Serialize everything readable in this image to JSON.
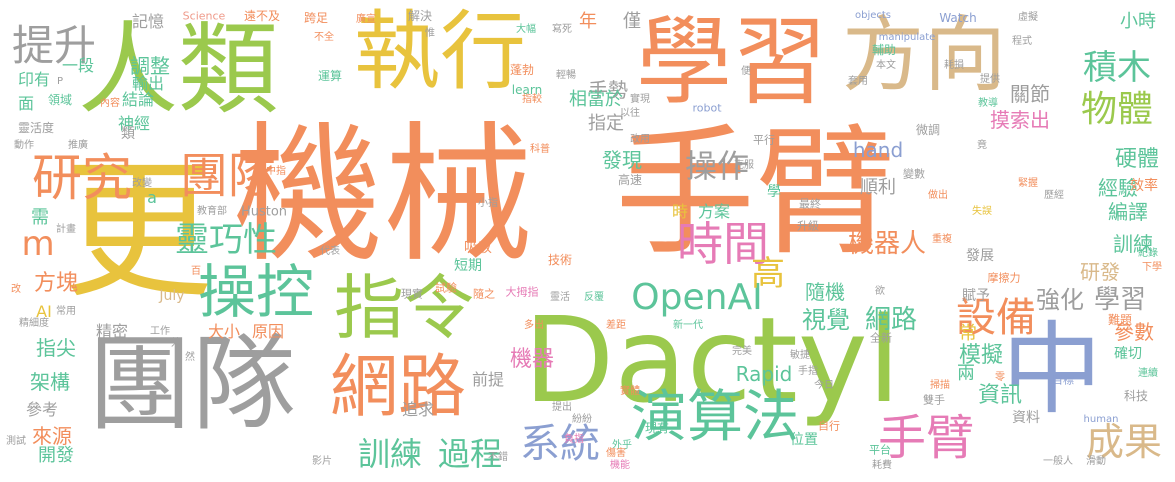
{
  "palette": {
    "orange": "#f28e5c",
    "green": "#9bc94d",
    "yellow": "#e8c33d",
    "gray": "#9e9e9e",
    "teal": "#5cc49a",
    "tan": "#d9b98a",
    "blue": "#8b9fd1",
    "pink": "#e67bb6",
    "salmon": "#ef9a8a",
    "lightgreen": "#a9d68a"
  },
  "words": [
    {
      "text": "機械",
      "color": "orange"
    },
    {
      "text": "手臂",
      "color": "orange"
    },
    {
      "text": "Dactyl",
      "color": "green"
    },
    {
      "text": "更",
      "color": "yellow"
    },
    {
      "text": "人類",
      "color": "green"
    },
    {
      "text": "學習",
      "color": "orange"
    },
    {
      "text": "方向",
      "color": "tan"
    },
    {
      "text": "執行",
      "color": "yellow"
    },
    {
      "text": "團隊",
      "color": "gray"
    },
    {
      "text": "中",
      "color": "blue"
    },
    {
      "text": "指令",
      "color": "green"
    },
    {
      "text": "網路",
      "color": "orange"
    },
    {
      "text": "操控",
      "color": "teal"
    },
    {
      "text": "演算法",
      "color": "teal"
    },
    {
      "text": "研究",
      "color": "orange"
    },
    {
      "text": "團隊",
      "color": "orange"
    },
    {
      "text": "手臂",
      "color": "pink"
    },
    {
      "text": "時間",
      "color": "pink"
    },
    {
      "text": "OpenAI",
      "color": "teal"
    },
    {
      "text": "系統",
      "color": "blue"
    },
    {
      "text": "提升",
      "color": "gray"
    },
    {
      "text": "設備",
      "color": "orange"
    },
    {
      "text": "成果",
      "color": "tan"
    },
    {
      "text": "物體",
      "color": "green"
    },
    {
      "text": "積木",
      "color": "teal"
    },
    {
      "text": "靈巧性",
      "color": "teal"
    },
    {
      "text": "操作",
      "color": "gray"
    },
    {
      "text": "訓練",
      "color": "teal"
    },
    {
      "text": "過程",
      "color": "teal"
    },
    {
      "text": "高",
      "color": "yellow"
    },
    {
      "text": "機器人",
      "color": "orange"
    },
    {
      "text": "網路",
      "color": "teal"
    },
    {
      "text": "視覺",
      "color": "teal"
    },
    {
      "text": "學習",
      "color": "gray"
    },
    {
      "text": "強化",
      "color": "gray"
    },
    {
      "text": "調整",
      "color": "teal"
    },
    {
      "text": "機器",
      "color": "pink"
    },
    {
      "text": "硬體",
      "color": "teal"
    },
    {
      "text": "m",
      "color": "orange"
    },
    {
      "text": "發現",
      "color": "teal"
    },
    {
      "text": "摸索出",
      "color": "pink"
    },
    {
      "text": "資訊",
      "color": "teal"
    },
    {
      "text": "模擬",
      "color": "teal"
    },
    {
      "text": "Rapid",
      "color": "teal"
    },
    {
      "text": "hand",
      "color": "blue"
    },
    {
      "text": "方塊",
      "color": "orange"
    },
    {
      "text": "指尖",
      "color": "teal"
    },
    {
      "text": "架構",
      "color": "teal"
    },
    {
      "text": "來源",
      "color": "orange"
    },
    {
      "text": "參數",
      "color": "orange"
    },
    {
      "text": "訓練",
      "color": "teal"
    },
    {
      "text": "研發",
      "color": "tan"
    },
    {
      "text": "編譯",
      "color": "teal"
    },
    {
      "text": "經驗",
      "color": "teal"
    },
    {
      "text": "手勢",
      "color": "gray"
    },
    {
      "text": "記憶",
      "color": "gray"
    },
    {
      "text": "小時",
      "color": "teal"
    },
    {
      "text": "關節",
      "color": "gray"
    },
    {
      "text": "神經",
      "color": "teal"
    },
    {
      "text": "結論",
      "color": "teal"
    },
    {
      "text": "相當於",
      "color": "teal"
    },
    {
      "text": "指定",
      "color": "gray"
    },
    {
      "text": "順利",
      "color": "gray"
    },
    {
      "text": "隨機",
      "color": "teal"
    },
    {
      "text": "方案",
      "color": "teal"
    },
    {
      "text": "大小",
      "color": "orange"
    },
    {
      "text": "原因",
      "color": "orange"
    },
    {
      "text": "精密",
      "color": "gray"
    },
    {
      "text": "參考",
      "color": "gray"
    },
    {
      "text": "開發",
      "color": "teal"
    },
    {
      "text": "輸出",
      "color": "teal"
    },
    {
      "text": "一段",
      "color": "teal"
    },
    {
      "text": "印有",
      "color": "teal"
    },
    {
      "text": "面",
      "color": "teal"
    },
    {
      "text": "需",
      "color": "teal"
    },
    {
      "text": "AI",
      "color": "yellow"
    },
    {
      "text": "年",
      "color": "orange"
    },
    {
      "text": "僅",
      "color": "gray"
    },
    {
      "text": "時",
      "color": "yellow"
    },
    {
      "text": "兩",
      "color": "teal"
    },
    {
      "text": "常",
      "color": "yellow"
    },
    {
      "text": "前提",
      "color": "gray"
    },
    {
      "text": "追求",
      "color": "gray"
    },
    {
      "text": "July",
      "color": "tan"
    },
    {
      "text": "Huston",
      "color": "gray"
    },
    {
      "text": "a",
      "color": "teal"
    },
    {
      "text": "Science",
      "color": "salmon"
    },
    {
      "text": "遠不及",
      "color": "orange"
    },
    {
      "text": "跨足",
      "color": "orange"
    },
    {
      "text": "解決",
      "color": "gray"
    },
    {
      "text": "objects",
      "color": "blue"
    },
    {
      "text": "Watch",
      "color": "blue"
    },
    {
      "text": "manipulate",
      "color": "blue"
    },
    {
      "text": "robot",
      "color": "blue"
    },
    {
      "text": "learn",
      "color": "teal"
    },
    {
      "text": "human",
      "color": "blue"
    },
    {
      "text": "現有",
      "color": "teal"
    },
    {
      "text": "位置",
      "color": "teal"
    },
    {
      "text": "資料",
      "color": "gray"
    },
    {
      "text": "自行",
      "color": "orange"
    },
    {
      "text": "雙手",
      "color": "gray"
    },
    {
      "text": "目標",
      "color": "blue"
    },
    {
      "text": "確切",
      "color": "teal"
    },
    {
      "text": "賦予",
      "color": "gray"
    },
    {
      "text": "摩擦力",
      "color": "orange"
    },
    {
      "text": "發展",
      "color": "gray"
    },
    {
      "text": "難題",
      "color": "orange"
    },
    {
      "text": "科技",
      "color": "gray"
    },
    {
      "text": "效率",
      "color": "orange"
    },
    {
      "text": "升級",
      "color": "gray"
    },
    {
      "text": "運算",
      "color": "teal"
    },
    {
      "text": "領域",
      "color": "teal"
    },
    {
      "text": "靈活度",
      "color": "gray"
    },
    {
      "text": "蓬勃",
      "color": "orange"
    },
    {
      "text": "高速",
      "color": "gray"
    },
    {
      "text": "技術",
      "color": "orange"
    },
    {
      "text": "學",
      "color": "teal"
    },
    {
      "text": "微調",
      "color": "gray"
    },
    {
      "text": "變數",
      "color": "gray"
    },
    {
      "text": "平行",
      "color": "gray"
    },
    {
      "text": "最終",
      "color": "gray"
    },
    {
      "text": "全新",
      "color": "gray"
    },
    {
      "text": "輔助",
      "color": "teal"
    },
    {
      "text": "提供",
      "color": "gray"
    },
    {
      "text": "虛擬",
      "color": "gray"
    },
    {
      "text": "耗損",
      "color": "gray"
    },
    {
      "text": "教導",
      "color": "teal"
    },
    {
      "text": "紀錄",
      "color": "teal"
    },
    {
      "text": "緊握",
      "color": "orange"
    },
    {
      "text": "一般人",
      "color": "gray"
    },
    {
      "text": "滑動",
      "color": "gray"
    },
    {
      "text": "平台",
      "color": "teal"
    },
    {
      "text": "耗費",
      "color": "gray"
    },
    {
      "text": "吸收",
      "color": "orange"
    },
    {
      "text": "短期",
      "color": "teal"
    },
    {
      "text": "隨之",
      "color": "orange"
    },
    {
      "text": "大拇指",
      "color": "pink"
    },
    {
      "text": "試驗",
      "color": "orange"
    },
    {
      "text": "現實",
      "color": "gray"
    },
    {
      "text": "代表",
      "color": "gray"
    },
    {
      "text": "教育部",
      "color": "gray"
    },
    {
      "text": "計畫",
      "color": "gray"
    },
    {
      "text": "改變",
      "color": "gray"
    },
    {
      "text": "推廣",
      "color": "gray"
    },
    {
      "text": "動作",
      "color": "gray"
    },
    {
      "text": "精細度",
      "color": "gray"
    },
    {
      "text": "常用",
      "color": "gray"
    },
    {
      "text": "影片",
      "color": "gray"
    },
    {
      "text": "測試",
      "color": "gray"
    },
    {
      "text": "機能",
      "color": "pink"
    },
    {
      "text": "外乎",
      "color": "teal"
    },
    {
      "text": "不錯",
      "color": "gray"
    },
    {
      "text": "完美",
      "color": "gray"
    },
    {
      "text": "手指",
      "color": "gray"
    },
    {
      "text": "今日",
      "color": "gray"
    },
    {
      "text": "掃描",
      "color": "orange"
    },
    {
      "text": "新一代",
      "color": "teal"
    },
    {
      "text": "差距",
      "color": "orange"
    },
    {
      "text": "多出",
      "color": "orange"
    },
    {
      "text": "提出",
      "color": "gray"
    },
    {
      "text": "實體",
      "color": "orange"
    },
    {
      "text": "紛紛",
      "color": "gray"
    },
    {
      "text": "反覆",
      "color": "teal"
    },
    {
      "text": "靈活",
      "color": "gray"
    },
    {
      "text": "欲",
      "color": "gray"
    },
    {
      "text": "克服",
      "color": "gray"
    },
    {
      "text": "實現",
      "color": "gray"
    },
    {
      "text": "以往",
      "color": "gray"
    },
    {
      "text": "指較",
      "color": "orange"
    },
    {
      "text": "改用",
      "color": "gray"
    },
    {
      "text": "科普",
      "color": "orange"
    },
    {
      "text": "大幅",
      "color": "teal"
    },
    {
      "text": "寫死",
      "color": "gray"
    },
    {
      "text": "輕暢",
      "color": "gray"
    },
    {
      "text": "惟",
      "color": "gray"
    },
    {
      "text": "不全",
      "color": "orange"
    },
    {
      "text": "廣宣",
      "color": "orange"
    },
    {
      "text": "內容",
      "color": "orange"
    },
    {
      "text": "套用",
      "color": "gray"
    },
    {
      "text": "本文",
      "color": "gray"
    },
    {
      "text": "程式",
      "color": "gray"
    },
    {
      "text": "便",
      "color": "gray"
    },
    {
      "text": "重複",
      "color": "orange"
    },
    {
      "text": "做出",
      "color": "orange"
    },
    {
      "text": "失誤",
      "color": "yellow"
    },
    {
      "text": "歷經",
      "color": "gray"
    },
    {
      "text": "竟",
      "color": "gray"
    },
    {
      "text": "下學",
      "color": "orange"
    },
    {
      "text": "連續",
      "color": "teal"
    },
    {
      "text": "零",
      "color": "orange"
    },
    {
      "text": "敏捷",
      "color": "gray"
    },
    {
      "text": "小指",
      "color": "gray"
    },
    {
      "text": "中指",
      "color": "orange"
    },
    {
      "text": "然",
      "color": "gray"
    },
    {
      "text": "外",
      "color": "gray"
    },
    {
      "text": "改",
      "color": "orange"
    },
    {
      "text": "百",
      "color": "orange"
    },
    {
      "text": "工作",
      "color": "gray"
    },
    {
      "text": "P",
      "color": "gray"
    },
    {
      "text": "類",
      "color": "gray"
    },
    {
      "text": "負指",
      "color": "pink"
    },
    {
      "text": "傷害",
      "color": "orange"
    }
  ]
}
